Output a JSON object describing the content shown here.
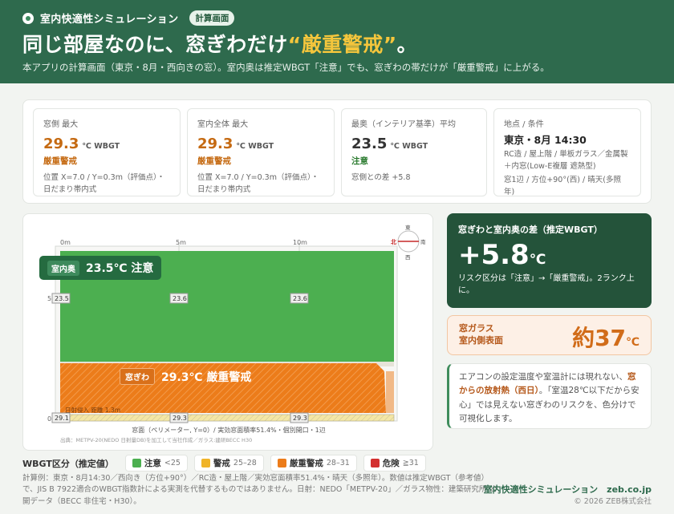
{
  "header": {
    "brand": "室内快適性シミュレーション",
    "badge": "計算画面",
    "headline_pre": "同じ部屋なのに、窓ぎわだけ",
    "headline_em": "“厳重警戒”",
    "headline_post": "。",
    "subtitle": "本アプリの計算画面（東京・8月・西向きの窓）。室内奥は推定WBGT「注意」でも、窓ぎわの帯だけが「厳重警戒」に上がる。"
  },
  "stats": {
    "window_max": {
      "label": "窓側 最大",
      "value": "29.3",
      "unit": "℃ WBGT",
      "status": "厳重警戒",
      "note": "位置 X=7.0 / Y=0.3m（評価点）・日だまり帯内式"
    },
    "room_max": {
      "label": "室内全体 最大",
      "value": "29.3",
      "unit": "℃ WBGT",
      "status": "厳重警戒",
      "note": "位置 X=7.0 / Y=0.3m（評価点）・日だまり帯内式"
    },
    "interior_avg": {
      "label": "最奥（インテリア基準）平均",
      "value": "23.5",
      "unit": "℃ WBGT",
      "status": "注意",
      "note": "窓側との差 +5.8"
    },
    "conditions": {
      "label": "地点 / 条件",
      "title": "東京・8月 14:30",
      "line1": "RC造 / 屋上階 / 単板ガラス／金属製＋内窓(Low-E複層 遮熱型)",
      "line2": "窓1辺 / 方位+90°(西) / 晴天(多照年)"
    }
  },
  "chart": {
    "x_ticks": [
      "0m",
      "5m",
      "10m"
    ],
    "y_ticks": [
      "5",
      "0"
    ],
    "room_tag": "室内奥",
    "room_text": "23.5℃ 注意",
    "window_tag": "窓ぎわ",
    "window_text": "29.3℃ 厳重警戒",
    "values_upper": [
      "23.5",
      "23.6",
      "23.6"
    ],
    "values_lower": [
      "29.1",
      "29.3",
      "29.3"
    ],
    "sun_text": "日射侵入 距離 1.3m",
    "caption": "窓面（ペリメーター, Y=0）/ 実効窓面積率51.4%・個別開口・1辺",
    "source": "出典：METPV-20(NEDO 日射量DB)を加工して当社作成／ガラス:建研BECC H30",
    "compass_n": "北",
    "compass_s": "南",
    "compass_e": "東",
    "compass_w": "西",
    "colors": {
      "safe": "#4caf50",
      "warning": "#f0b429",
      "severe": "#ec7c1a",
      "danger": "#d32f2f"
    }
  },
  "diff": {
    "label": "窓ぎわと室内奥の差（推定WBGT）",
    "value": "+5.8",
    "unit": "℃",
    "note": "リスク区分は「注意」→「厳重警戒」。2ランク上に。"
  },
  "glass": {
    "label_line1": "窓ガラス",
    "label_line2": "室内側表面",
    "value": "約37",
    "unit": "℃"
  },
  "note": {
    "pre": "エアコンの設定温度や室温計には現れない、",
    "bold": "窓からの放射熱（西日）",
    "post": "。「室温28℃以下だから安心」では見えない窓ぎわのリスクを、色分けで可視化します。"
  },
  "legend": {
    "title": "WBGT区分（推定値）",
    "items": [
      {
        "name": "注意",
        "range": "<25",
        "color": "#4caf50"
      },
      {
        "name": "警戒",
        "range": "25–28",
        "color": "#f0b429"
      },
      {
        "name": "厳重警戒",
        "range": "28–31",
        "color": "#ec7c1a"
      },
      {
        "name": "危険",
        "range": "≧31",
        "color": "#d32f2f"
      }
    ]
  },
  "footer": {
    "note": "計算例：東京・8月14:30／西向き（方位+90°）／RC造・屋上階／実効窓面積率51.4%・晴天（多照年）。数値は推定WBGT（参考値）で、JIS B 7922適合のWBGT指数計による実測を代替するものではありません。日射：NEDO「METPV-20」／ガラス物性：建築研究所 公開データ（BECC 非住宅・H30）。",
    "brand": "室内快適性シミュレーション　zeb.co.jp",
    "copyright": "© 2026 ZEB株式会社"
  }
}
